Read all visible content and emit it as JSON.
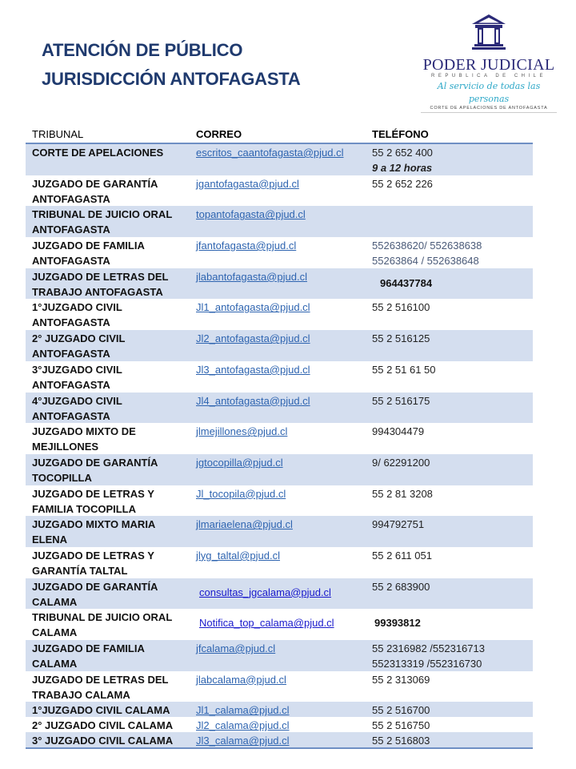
{
  "header": {
    "title_line1": "ATENCIÓN DE PÚBLICO",
    "title_line2": "JURISDICCIÓN ANTOFAGASTA",
    "title_color": "#1f3a6e"
  },
  "logo": {
    "name": "PODER JUDICIAL",
    "subtitle": "REPUBLICA DE CHILE",
    "slogan": "Al servicio de todas las personas",
    "court": "CORTE DE APELACIONES DE ANTOFAGASTA",
    "icon": "courthouse-columns-icon"
  },
  "table": {
    "columns": [
      "TRIBUNAL",
      "CORREO",
      "TELÉFONO"
    ],
    "rows": [
      {
        "tribunal": "CORTE DE APELACIONES",
        "correo": "escritos_caantofagasta@pjud.cl",
        "telefono": "55 2 652 400",
        "nota": "9 a 12 horas"
      },
      {
        "tribunal": "JUZGADO DE GARANTÍA ANTOFAGASTA",
        "correo": "jgantofagasta@pjud.cl",
        "telefono": "55 2 652 226"
      },
      {
        "tribunal": "TRIBUNAL DE JUICIO ORAL ANTOFAGASTA",
        "correo": "topantofagasta@pjud.cl",
        "telefono": ""
      },
      {
        "tribunal": "JUZGADO DE FAMILIA ANTOFAGASTA",
        "correo": "jfantofagasta@pjud.cl",
        "telefono": "552638620/ 552638638",
        "telefono2": "55263864 / 552638648",
        "style": "muted"
      },
      {
        "tribunal": "JUZGADO DE LETRAS DEL TRABAJO ANTOFAGASTA",
        "correo": "jlabantofagasta@pjud.cl",
        "telefono": "964437784",
        "style": "boxed"
      },
      {
        "tribunal": "1°JUZGADO CIVIL ANTOFAGASTA",
        "correo": "Jl1_antofagasta@pjud.cl",
        "telefono": "55 2 516100"
      },
      {
        "tribunal": "2° JUZGADO CIVIL ANTOFAGASTA",
        "correo": "Jl2_antofagasta@pjud.cl",
        "telefono": "55 2 516125"
      },
      {
        "tribunal": "3°JUZGADO CIVIL ANTOFAGASTA",
        "correo": "Jl3_antofagasta@pjud.cl",
        "telefono": "55 2 51 61 50"
      },
      {
        "tribunal": "4°JUZGADO CIVIL ANTOFAGASTA",
        "correo": "Jl4_antofagasta@pjud.cl",
        "telefono": "55 2 516175"
      },
      {
        "tribunal": "JUZGADO MIXTO DE MEJILLONES",
        "correo": "jlmejillones@pjud.cl",
        "telefono": "994304479"
      },
      {
        "tribunal": "JUZGADO DE GARANTÍA TOCOPILLA",
        "correo": "jgtocopilla@pjud.cl",
        "telefono": "9/ 62291200"
      },
      {
        "tribunal": "JUZGADO DE  LETRAS Y FAMILIA TOCOPILLA",
        "correo": "Jl_tocopila@pjud.cl",
        "telefono": "55 2 81 3208"
      },
      {
        "tribunal": "JUZGADO MIXTO MARIA ELENA",
        "correo": "jlmariaelena@pjud.cl",
        "telefono": "994792751"
      },
      {
        "tribunal": "JUZGADO DE LETRAS Y GARANTÍA TALTAL",
        "correo": "jlyg_taltal@pjud.cl",
        "telefono": "55 2 611 051"
      },
      {
        "tribunal": "JUZGADO DE GARANTÍA CALAMA",
        "correo": "consultas_jgcalama@pjud.cl",
        "telefono": "55 2 683900",
        "correo_style": "alt"
      },
      {
        "tribunal": "TRIBUNAL DE JUICIO ORAL CALAMA",
        "correo": "Notifica_top_calama@pjud.cl",
        "telefono": "99393812",
        "correo_style": "alt",
        "style": "bold"
      },
      {
        "tribunal": "JUZGADO DE FAMILIA CALAMA",
        "correo": "jfcalama@pjud.cl",
        "telefono": "55 2316982 /552316713",
        "telefono2": "552313319 /552316730"
      },
      {
        "tribunal": "JUZGADO DE LETRAS DEL TRABAJO CALAMA",
        "correo": "jlabcalama@pjud.cl",
        "telefono": "55 2 313069"
      },
      {
        "tribunal": "1°JUZGADO CIVIL CALAMA",
        "correo": "Jl1_calama@pjud.cl",
        "telefono": "55 2 516700",
        "single": true
      },
      {
        "tribunal": "2° JUZGADO CIVIL CALAMA",
        "correo": "Jl2_calama@pjud.cl",
        "telefono": "55 2 516750",
        "single": true
      },
      {
        "tribunal": "3° JUZGADO CIVIL CALAMA",
        "correo": "Jl3_calama@pjud.cl",
        "telefono": "55 2 516803",
        "single": true
      }
    ]
  },
  "colors": {
    "row_shade": "#d4deef",
    "link": "#2e64b0",
    "rule": "#6f8fc4"
  }
}
